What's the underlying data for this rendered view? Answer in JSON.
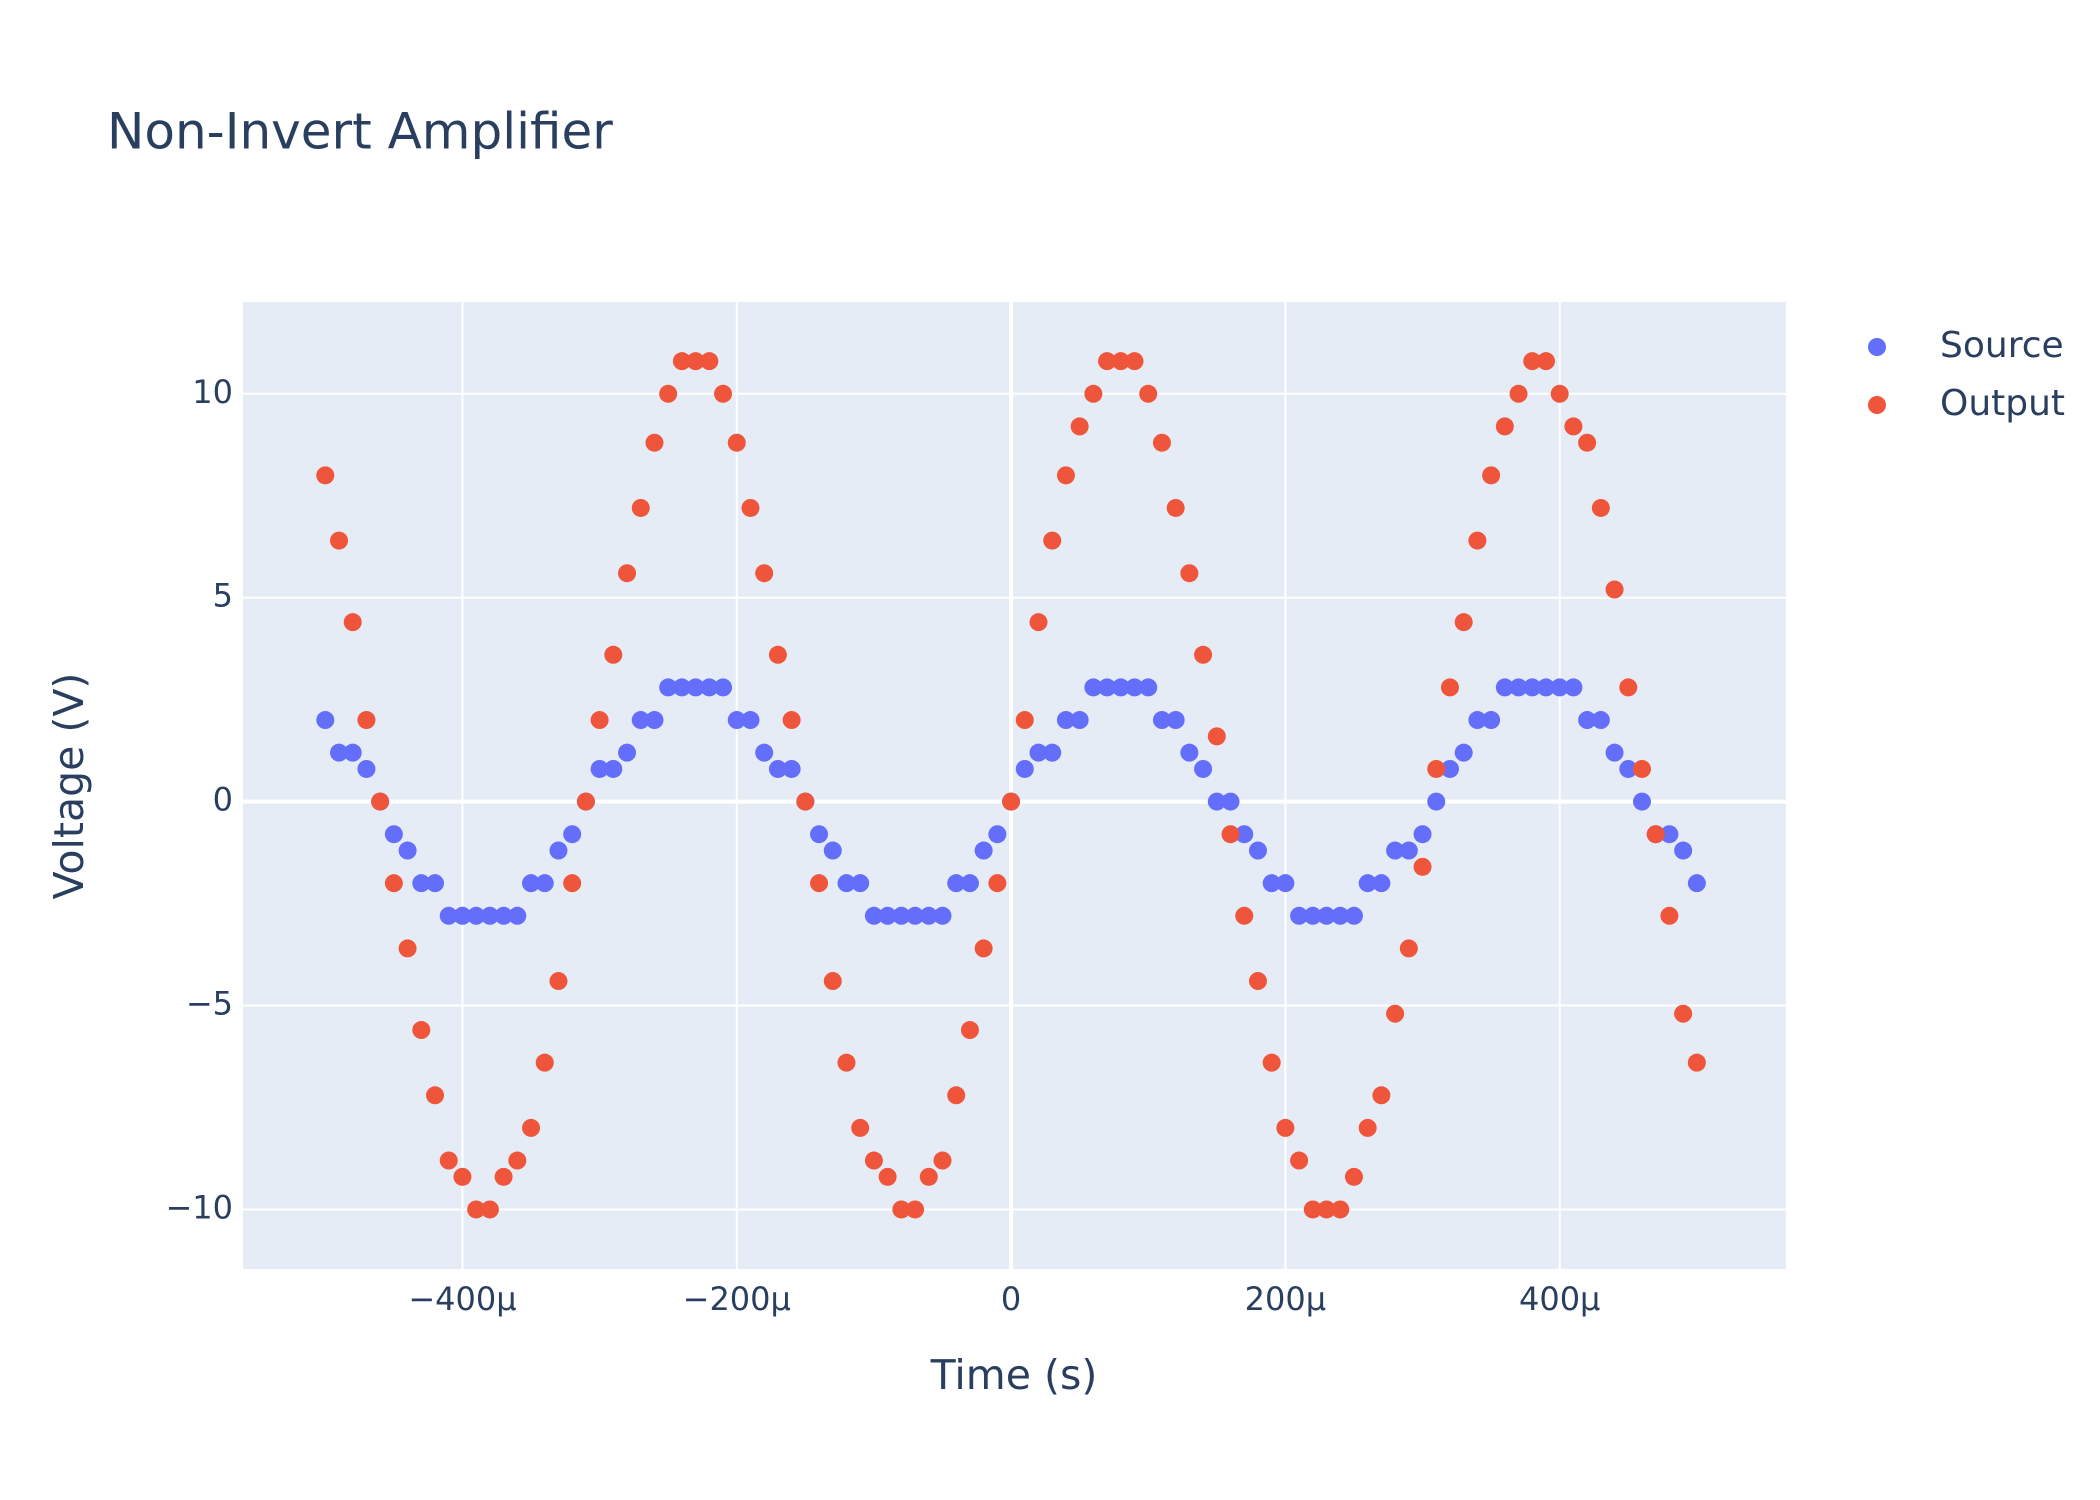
{
  "chart_data": {
    "type": "scatter",
    "title": "Non-Invert Amplifier",
    "xlabel": "Time (s)",
    "ylabel": "Voltage (V)",
    "x": [
      -0.0005,
      -0.00049,
      -0.00048,
      -0.00047,
      -0.00046,
      -0.00045,
      -0.00044,
      -0.00043,
      -0.00042,
      -0.00041,
      -0.0004,
      -0.00039,
      -0.00038,
      -0.00037,
      -0.00036,
      -0.00035,
      -0.00034,
      -0.00033,
      -0.00032,
      -0.00031,
      -0.0003,
      -0.00029,
      -0.00028,
      -0.00027,
      -0.00026,
      -0.00025,
      -0.00024,
      -0.00023,
      -0.00022,
      -0.00021,
      -0.0002,
      -0.00019,
      -0.00018,
      -0.00017,
      -0.00016,
      -0.00015,
      -0.00014,
      -0.00013,
      -0.00012,
      -0.00011,
      -0.0001,
      -9e-05,
      -8e-05,
      -7e-05,
      -6e-05,
      -5e-05,
      -4e-05,
      -3e-05,
      -2e-05,
      -1e-05,
      0,
      1e-05,
      2e-05,
      3e-05,
      4e-05,
      5e-05,
      6e-05,
      7e-05,
      8e-05,
      9e-05,
      0.0001,
      0.00011,
      0.00012,
      0.00013,
      0.00014,
      0.00015,
      0.00016,
      0.00017,
      0.00018,
      0.00019,
      0.0002,
      0.00021,
      0.00022,
      0.00023,
      0.00024,
      0.00025,
      0.00026,
      0.00027,
      0.00028,
      0.00029,
      0.0003,
      0.00031,
      0.00032,
      0.00033,
      0.00034,
      0.00035,
      0.00036,
      0.00037,
      0.00038,
      0.00039,
      0.0004,
      0.00041,
      0.00042,
      0.00043,
      0.00044,
      0.00045,
      0.00046,
      0.00047,
      0.00048,
      0.00049,
      0.0005
    ],
    "series": [
      {
        "name": "Source",
        "color": "#636efa",
        "values": [
          2.0,
          1.2,
          1.2,
          0.8,
          0,
          -0.8,
          -1.2,
          -2.0,
          -2.0,
          -2.8,
          -2.8,
          -2.8,
          -2.8,
          -2.8,
          -2.8,
          -2.0,
          -2.0,
          -1.2,
          -0.8,
          0,
          0.8,
          0.8,
          1.2,
          2.0,
          2.0,
          2.8,
          2.8,
          2.8,
          2.8,
          2.8,
          2.0,
          2.0,
          1.2,
          0.8,
          0.8,
          0,
          -0.8,
          -1.2,
          -2.0,
          -2.0,
          -2.8,
          -2.8,
          -2.8,
          -2.8,
          -2.8,
          -2.8,
          -2.0,
          -2.0,
          -1.2,
          -0.8,
          0,
          0.8,
          1.2,
          1.2,
          2.0,
          2.0,
          2.8,
          2.8,
          2.8,
          2.8,
          2.8,
          2.0,
          2.0,
          1.2,
          0.8,
          0,
          0,
          -0.8,
          -1.2,
          -2.0,
          -2.0,
          -2.8,
          -2.8,
          -2.8,
          -2.8,
          -2.8,
          -2.0,
          -2.0,
          -1.2,
          -1.2,
          -0.8,
          0,
          0.8,
          1.2,
          2.0,
          2.0,
          2.8,
          2.8,
          2.8,
          2.8,
          2.8,
          2.8,
          2.0,
          2.0,
          1.2,
          0.8,
          0,
          -0.8,
          -0.8,
          -1.2,
          -2.0
        ]
      },
      {
        "name": "Output",
        "color": "#ef553b",
        "values": [
          8,
          6.4,
          4.4,
          2,
          0,
          -2,
          -3.6,
          -5.6,
          -7.2,
          -8.8,
          -9.2,
          -10,
          -10,
          -9.2,
          -8.8,
          -8,
          -6.4,
          -4.4,
          -2,
          0,
          2,
          3.6,
          5.6,
          7.2,
          8.8,
          10,
          10.8,
          10.8,
          10.8,
          10,
          8.8,
          7.2,
          5.6,
          3.6,
          2,
          0,
          -2,
          -4.4,
          -6.4,
          -8,
          -8.8,
          -9.2,
          -10,
          -10,
          -9.2,
          -8.8,
          -7.2,
          -5.6,
          -3.6,
          -2,
          0,
          2,
          4.4,
          6.4,
          8,
          9.2,
          10,
          10.8,
          10.8,
          10.8,
          10,
          8.8,
          7.2,
          5.6,
          3.6,
          1.6,
          -0.8,
          -2.8,
          -4.4,
          -6.4,
          -8,
          -8.8,
          -10,
          -10,
          -10,
          -9.2,
          -8,
          -7.2,
          -5.2,
          -3.6,
          -1.6,
          0.8,
          2.8,
          4.4,
          6.4,
          8,
          9.2,
          10,
          10.8,
          10.8,
          10,
          9.2,
          8.8,
          7.2,
          5.2,
          2.8,
          0.8,
          -0.8,
          -2.8,
          -5.2,
          -6.4
        ]
      }
    ],
    "xlim": [
      -0.00056,
      0.000565
    ],
    "ylim": [
      -11.46,
      12.25
    ],
    "xticks": [
      {
        "value": -0.0004,
        "label": "−400µ"
      },
      {
        "value": -0.0002,
        "label": "−200µ"
      },
      0,
      {
        "value": 0.0002,
        "label": "200µ"
      },
      {
        "value": 0.0004,
        "label": "400µ"
      }
    ],
    "yticks": [
      {
        "value": -10,
        "label": "−10"
      },
      {
        "value": -5,
        "label": "−5"
      },
      0,
      5,
      10
    ],
    "grid": true,
    "legend": "right"
  }
}
